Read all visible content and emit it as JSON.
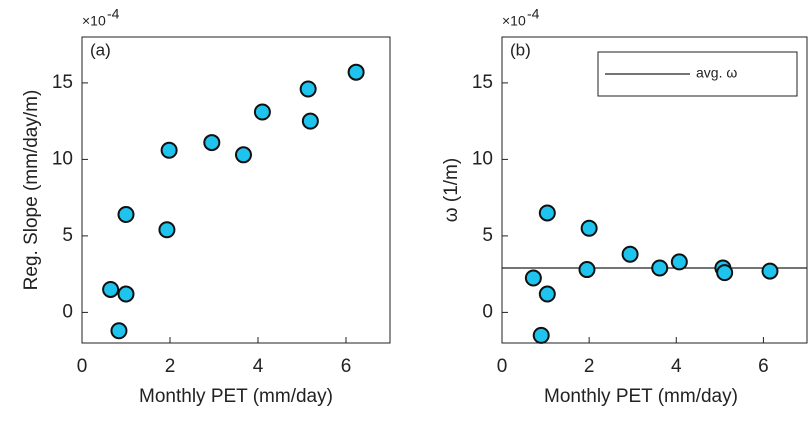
{
  "chart_data": [
    {
      "type": "scatter",
      "panel_label": "(a)",
      "exponent_base": "×10",
      "exponent": "-4",
      "xlabel": "Monthly PET (mm/day)",
      "ylabel": "Reg. Slope (mm/day/m)",
      "xlim": [
        0,
        7
      ],
      "ylim": [
        -2,
        18
      ],
      "xticks": [
        0,
        2,
        4,
        6
      ],
      "yticks": [
        0,
        5,
        10,
        15
      ],
      "color": "#1ec4ee",
      "x": [
        0.65,
        0.84,
        1.0,
        1.0,
        1.93,
        1.98,
        2.95,
        3.67,
        4.1,
        5.14,
        5.19,
        6.23
      ],
      "y": [
        1.5,
        -1.2,
        1.2,
        6.4,
        5.4,
        10.6,
        11.1,
        10.3,
        13.1,
        14.6,
        12.5,
        15.7
      ]
    },
    {
      "type": "scatter",
      "panel_label": "(b)",
      "exponent_base": "×10",
      "exponent": "-4",
      "xlabel": "Monthly PET (mm/day)",
      "ylabel": "ω (1/m)",
      "xlim": [
        0,
        7
      ],
      "ylim": [
        -2,
        18
      ],
      "xticks": [
        0,
        2,
        4,
        6
      ],
      "yticks": [
        0,
        5,
        10,
        15
      ],
      "color": "#1ec4ee",
      "x": [
        0.72,
        0.9,
        1.04,
        1.04,
        1.95,
        2.0,
        2.94,
        3.62,
        4.07,
        5.07,
        5.11,
        6.15
      ],
      "y": [
        2.25,
        -1.5,
        1.2,
        6.5,
        2.8,
        5.5,
        3.8,
        2.9,
        3.3,
        2.9,
        2.6,
        2.7
      ],
      "hline": {
        "name": "avg. ω",
        "value": 2.9
      }
    }
  ]
}
